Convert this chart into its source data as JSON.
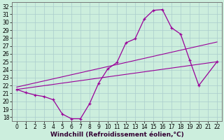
{
  "xlabel": "Windchill (Refroidissement éolien,°C)",
  "bg_color": "#cceedd",
  "line_color": "#990099",
  "grid_color": "#aacccc",
  "xlim": [
    -0.5,
    22.5
  ],
  "ylim": [
    17.5,
    32.5
  ],
  "xticks": [
    0,
    1,
    2,
    3,
    4,
    5,
    6,
    7,
    8,
    9,
    10,
    11,
    12,
    13,
    14,
    15,
    16,
    17,
    18,
    19,
    20,
    21,
    22
  ],
  "yticks": [
    18,
    19,
    20,
    21,
    22,
    23,
    24,
    25,
    26,
    27,
    28,
    29,
    30,
    31,
    32
  ],
  "line1_x": [
    0,
    1,
    2,
    3,
    4,
    5,
    6,
    7,
    8,
    9,
    10,
    11,
    12,
    13,
    14,
    15,
    16,
    17,
    18,
    19,
    20,
    22
  ],
  "line1_y": [
    21.5,
    21.1,
    20.8,
    20.6,
    20.2,
    18.4,
    17.8,
    17.8,
    19.7,
    22.3,
    24.1,
    24.9,
    27.4,
    27.9,
    30.4,
    31.5,
    31.6,
    29.3,
    28.5,
    25.2,
    22.0,
    25.0
  ],
  "line2_x": [
    0,
    22
  ],
  "line2_y": [
    21.5,
    25.0
  ],
  "line3_x": [
    0,
    22
  ],
  "line3_y": [
    21.8,
    27.5
  ],
  "tick_fontsize": 5.5,
  "xlabel_fontsize": 6.5
}
